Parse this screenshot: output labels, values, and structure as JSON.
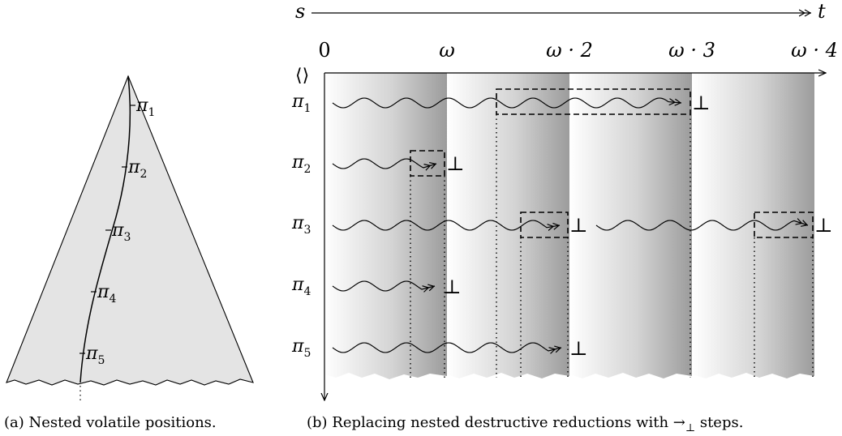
{
  "panel_a": {
    "labels": [
      "π",
      "π",
      "π",
      "π",
      "π"
    ],
    "subscripts": [
      "1",
      "2",
      "3",
      "4",
      "5"
    ],
    "caption": "(a) Nested volatile positions."
  },
  "panel_b": {
    "s_label": "s",
    "t_label": "t",
    "ordinals": [
      "0",
      "ω",
      "ω · 2",
      "ω · 3",
      "ω · 4"
    ],
    "root_label": "⟨⟩",
    "row_labels": [
      "π",
      "π",
      "π",
      "π",
      "π"
    ],
    "row_subscripts": [
      "1",
      "2",
      "3",
      "4",
      "5"
    ],
    "bottom": "⊥",
    "caption_prefix": "(b) Replacing nested destructive reductions with →",
    "caption_sub": "⊥",
    "caption_suffix": " steps."
  },
  "colors": {
    "tree_fill": "#e4e4e4",
    "band_light": "#ffffff",
    "band_dark": "#9c9c9c",
    "ink": "#000000"
  }
}
